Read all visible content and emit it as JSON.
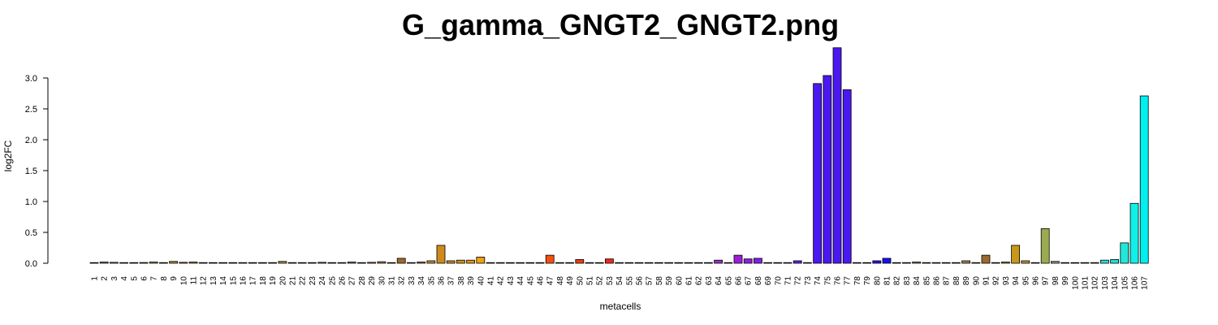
{
  "chart_data": {
    "type": "bar",
    "title": "G_gamma_GNGT2_GNGT2.png",
    "xlabel": "metacells",
    "ylabel": "log2FC",
    "ylim": [
      0,
      3.5
    ],
    "yticks": [
      "0.0",
      "0.5",
      "1.0",
      "1.5",
      "2.0",
      "2.5",
      "3.0"
    ],
    "grid": false,
    "legend": "none",
    "categories": [
      "1",
      "2",
      "3",
      "4",
      "5",
      "6",
      "7",
      "8",
      "9",
      "10",
      "11",
      "12",
      "13",
      "14",
      "15",
      "16",
      "17",
      "18",
      "19",
      "20",
      "21",
      "22",
      "23",
      "24",
      "25",
      "26",
      "27",
      "28",
      "29",
      "30",
      "31",
      "32",
      "33",
      "34",
      "35",
      "36",
      "37",
      "38",
      "39",
      "40",
      "41",
      "42",
      "43",
      "44",
      "45",
      "46",
      "47",
      "48",
      "49",
      "50",
      "51",
      "52",
      "53",
      "54",
      "55",
      "56",
      "57",
      "58",
      "59",
      "60",
      "61",
      "62",
      "63",
      "64",
      "65",
      "66",
      "67",
      "68",
      "69",
      "70",
      "71",
      "72",
      "73",
      "74",
      "75",
      "76",
      "77",
      "78",
      "79",
      "80",
      "81",
      "82",
      "83",
      "84",
      "85",
      "86",
      "87",
      "88",
      "89",
      "90",
      "91",
      "92",
      "93",
      "94",
      "95",
      "96",
      "97",
      "98",
      "99",
      "100",
      "101",
      "102",
      "103",
      "104",
      "105",
      "106",
      "107"
    ],
    "values": [
      0.01,
      0.02,
      0.015,
      0.01,
      0.01,
      0.012,
      0.02,
      0.01,
      0.03,
      0.015,
      0.02,
      0.01,
      0.01,
      0.01,
      0.01,
      0.01,
      0.01,
      0.01,
      0.01,
      0.03,
      0.01,
      0.01,
      0.01,
      0.015,
      0.01,
      0.01,
      0.02,
      0.01,
      0.015,
      0.025,
      0.01,
      0.08,
      0.01,
      0.02,
      0.04,
      0.29,
      0.04,
      0.05,
      0.05,
      0.1,
      0.01,
      0.01,
      0.01,
      0.01,
      0.01,
      0.01,
      0.13,
      0.01,
      0.01,
      0.06,
      0.01,
      0.01,
      0.07,
      0.01,
      0.01,
      0.01,
      0.01,
      0.01,
      0.01,
      0.01,
      0.01,
      0.01,
      0.01,
      0.05,
      0.01,
      0.13,
      0.07,
      0.08,
      0.01,
      0.01,
      0.01,
      0.04,
      0.01,
      2.91,
      3.04,
      3.49,
      2.81,
      0.01,
      0.01,
      0.04,
      0.08,
      0.01,
      0.01,
      0.02,
      0.01,
      0.01,
      0.01,
      0.01,
      0.04,
      0.01,
      0.13,
      0.01,
      0.02,
      0.29,
      0.04,
      0.01,
      0.56,
      0.03,
      0.01,
      0.01,
      0.01,
      0.01,
      0.05,
      0.06,
      0.33,
      0.97,
      2.71
    ],
    "colors": [
      "#8e8e8e",
      "#9b8060",
      "#a08a70",
      "#c9c9c9",
      "#8a8a8a",
      "#9a7a50",
      "#b09060",
      "#9c8a70",
      "#b5853a",
      "#a58045",
      "#b8894a",
      "#9f7f55",
      "#8a6a40",
      "#9b7a50",
      "#a08050",
      "#a58550",
      "#aa8a55",
      "#9a7850",
      "#a58048",
      "#b8894a",
      "#8c6c40",
      "#8a6a40",
      "#8f6f45",
      "#8a6a40",
      "#907045",
      "#8a6a40",
      "#9b7a48",
      "#9a7a48",
      "#a08050",
      "#a58550",
      "#9b7a48",
      "#a06828",
      "#8f6a38",
      "#b07a30",
      "#c08a30",
      "#cf8a1a",
      "#c88a20",
      "#d29020",
      "#e09a10",
      "#f0a010",
      "#c8c8c8",
      "#ddc0a0",
      "#dcc09a",
      "#d8b890",
      "#d0a880",
      "#c89870",
      "#f25010",
      "#e05030",
      "#e0d0c8",
      "#e84010",
      "#d83020",
      "#c82818",
      "#f02818",
      "#c8c8c8",
      "#c8c8c8",
      "#c8c8c8",
      "#c8c8c8",
      "#c8c8c8",
      "#c8c8c8",
      "#c8c8c8",
      "#c8c8c8",
      "#c8c8c8",
      "#c8c8c8",
      "#9a30c8",
      "#9a30c8",
      "#9a20d8",
      "#8a20e0",
      "#8020e8",
      "#8a8a8a",
      "#9090a0",
      "#9090a0",
      "#6020e8",
      "#5020f0",
      "#4a18f0",
      "#4a18f0",
      "#4a18f0",
      "#4a18f0",
      "#4010f0",
      "#2a10f0",
      "#2a10f0",
      "#1810f0",
      "#9090a0",
      "#8888a8",
      "#9a8a60",
      "#a08a60",
      "#9a7a50",
      "#a08a60",
      "#a08a60",
      "#a08050",
      "#a08050",
      "#9a6a30",
      "#a08a50",
      "#a08a50",
      "#c89818",
      "#b89040",
      "#a0a050",
      "#9aaa50",
      "#8aa080",
      "#8aa0a0",
      "#8aa0a8",
      "#40c0c0",
      "#30d0c0",
      "#30e0d0",
      "#20e0d8",
      "#20e8d8",
      "#10f0e8",
      "#00f0f0"
    ]
  }
}
